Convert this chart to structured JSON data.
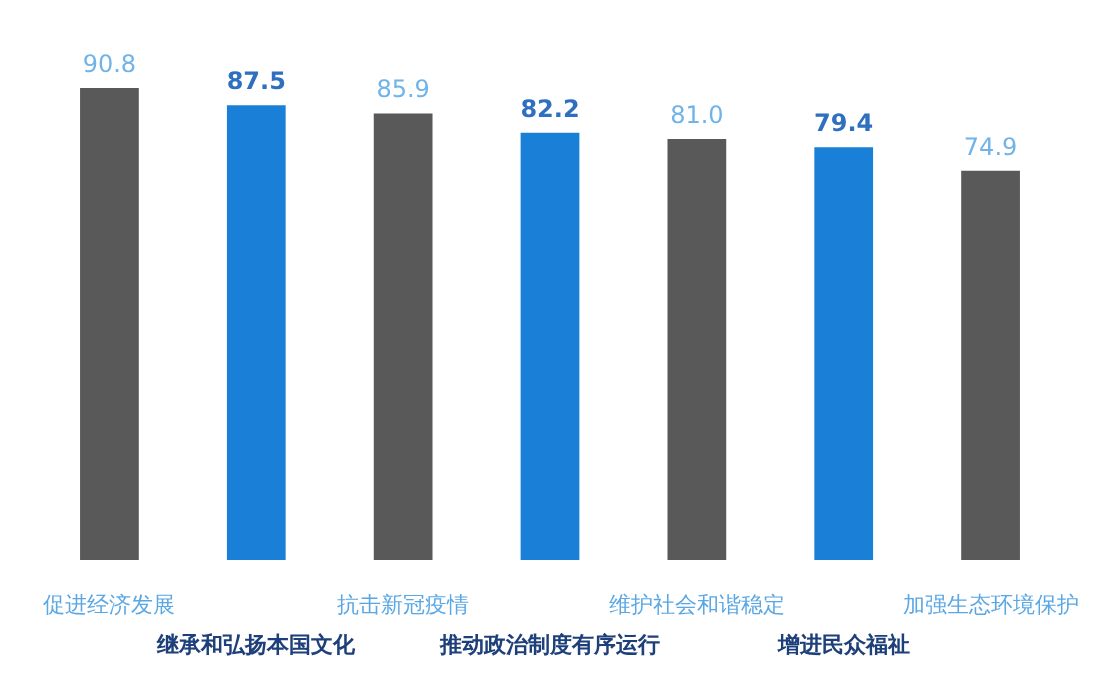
{
  "chart_data": {
    "type": "bar",
    "categories": [
      "促进经济发展",
      "继承和弘扬本国文化",
      "抗击新冠疫情",
      "推动政治制度有序运行",
      "维护社会和谐稳定",
      "增进民众福祉",
      "加强生态环境保护"
    ],
    "values": [
      90.8,
      87.5,
      85.9,
      82.2,
      81.0,
      79.4,
      74.9
    ],
    "colors": [
      "#595959",
      "#1a7fd6",
      "#595959",
      "#1a7fd6",
      "#595959",
      "#1a7fd6",
      "#595959"
    ],
    "value_labels": [
      "90.8",
      "87.5",
      "85.9",
      "82.2",
      "81.0",
      "79.4",
      "74.9"
    ],
    "grid": false,
    "legend": false
  }
}
